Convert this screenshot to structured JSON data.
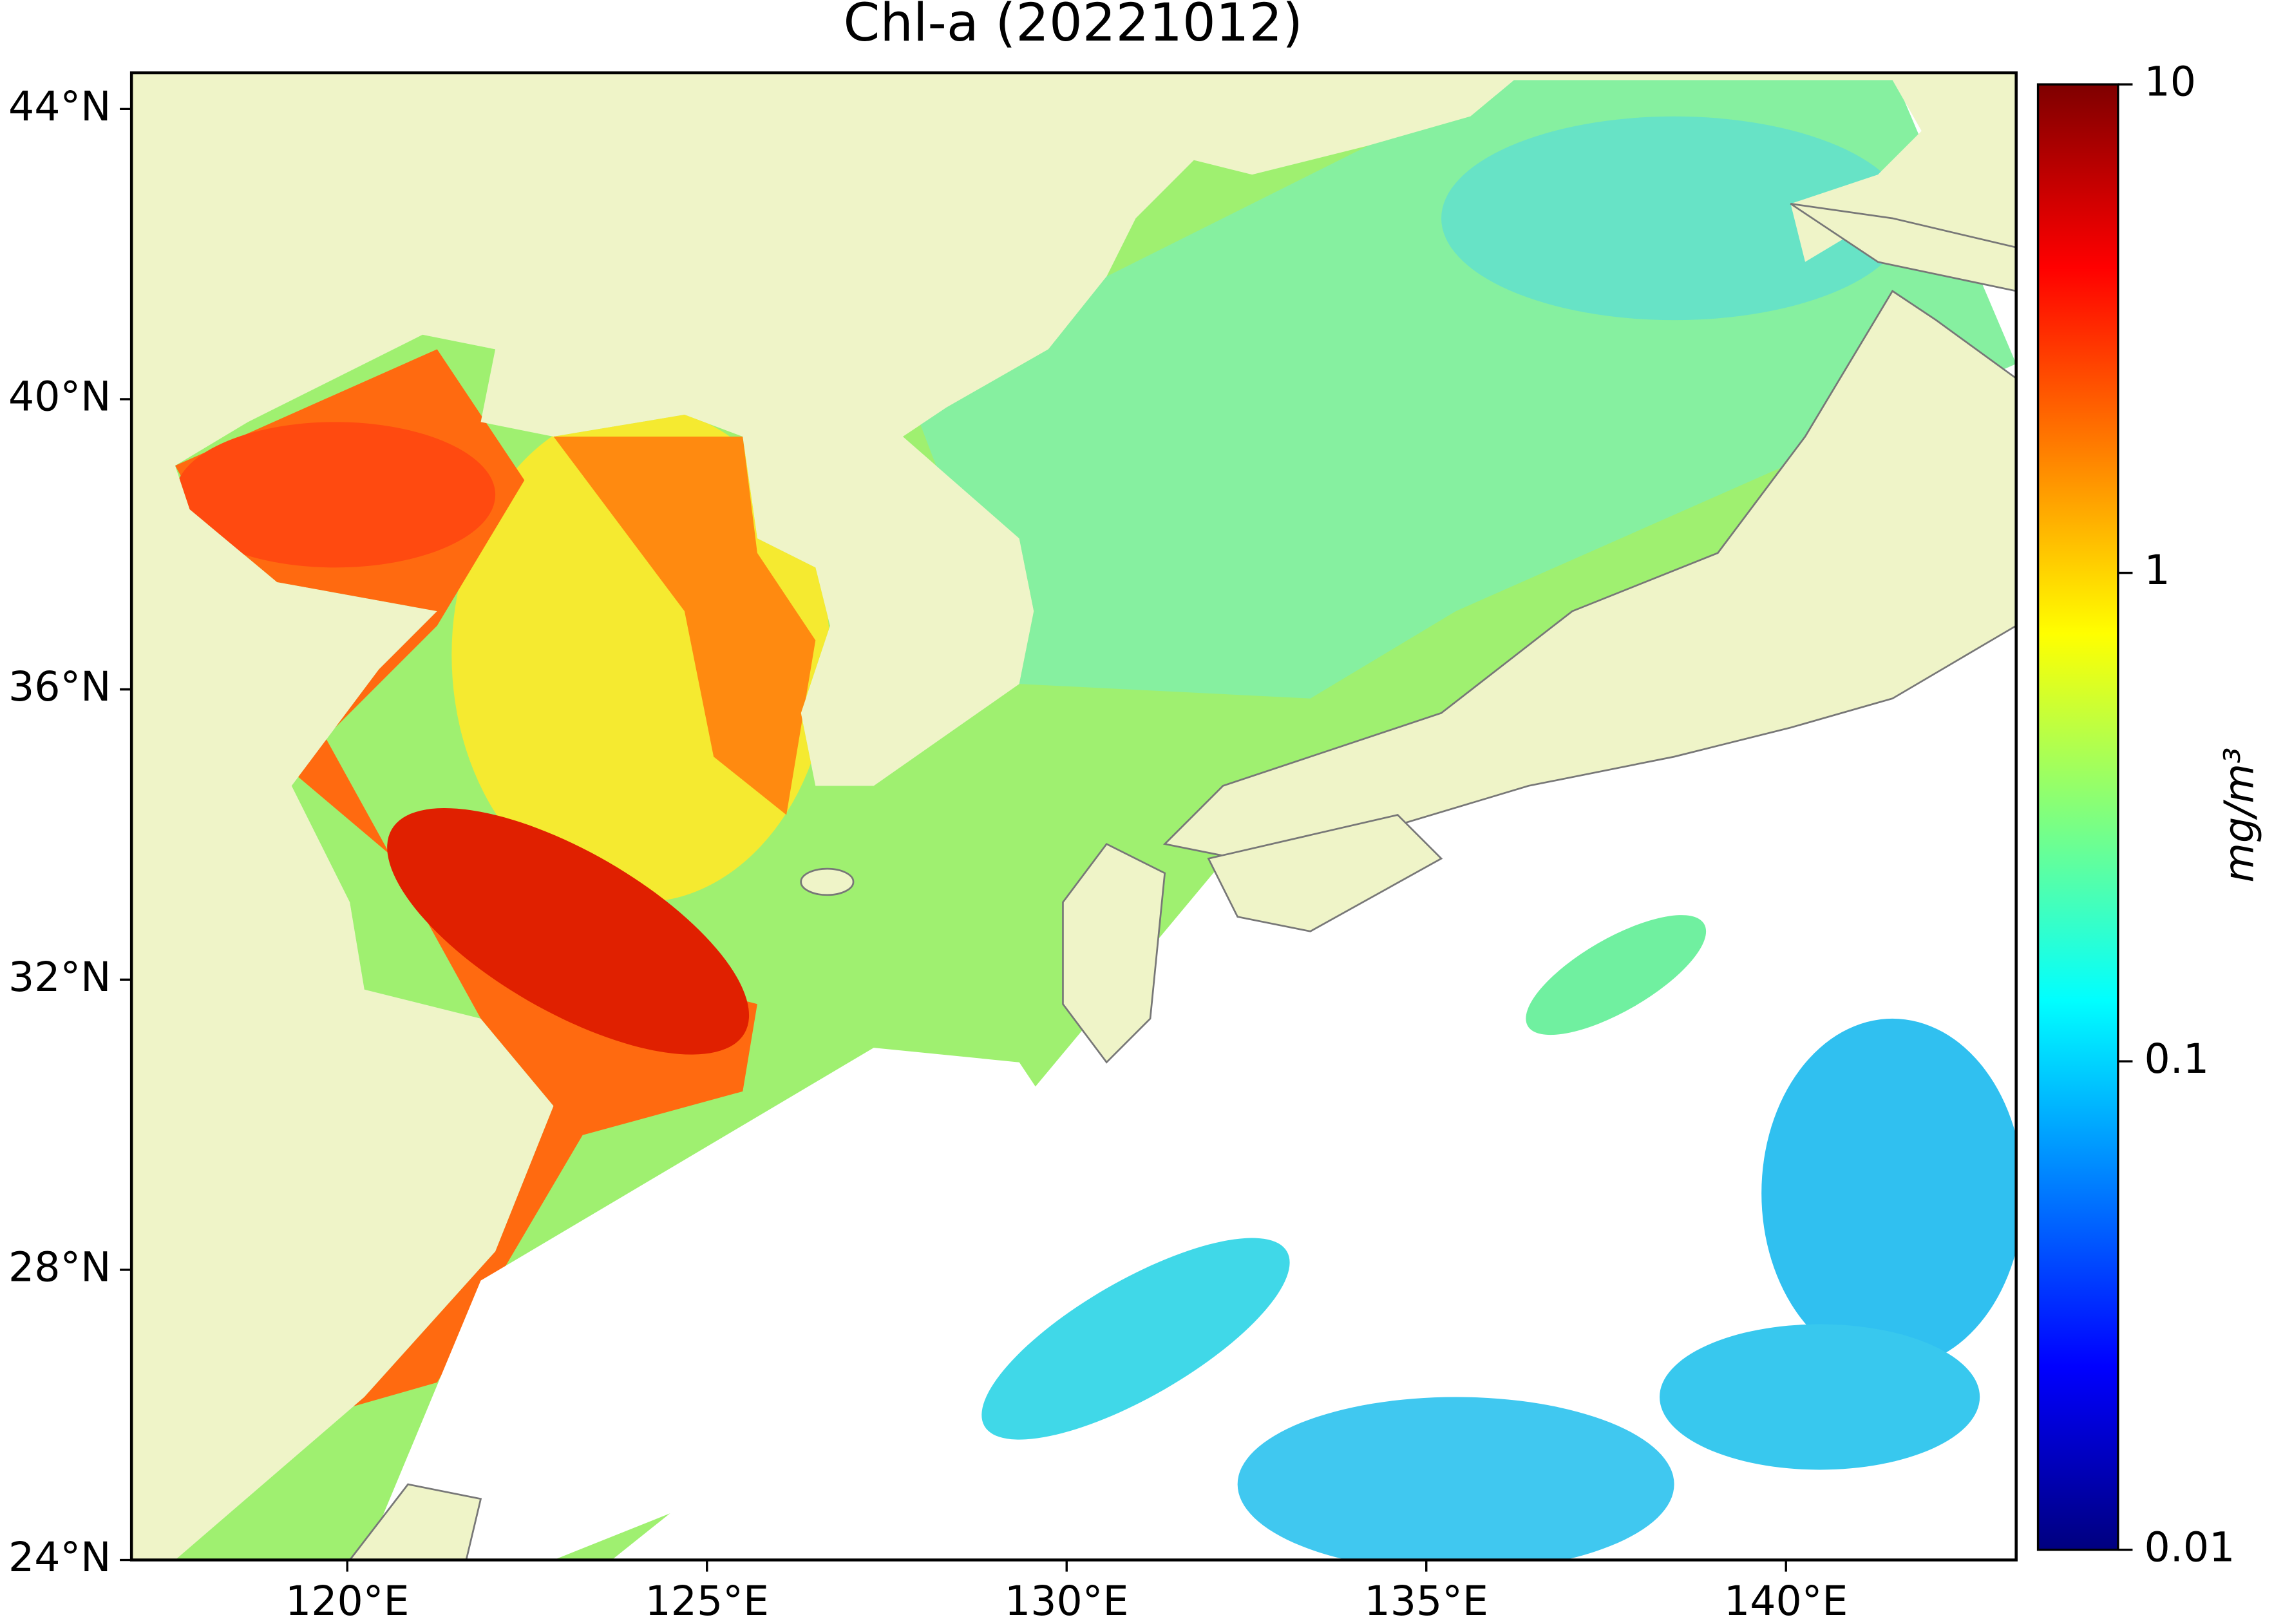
{
  "chart_data": {
    "type": "map",
    "title": "Chl-a (20221012)",
    "xlim": [
      117,
      143.2
    ],
    "ylim": [
      24,
      44.5
    ],
    "xticks": [
      {
        "value": 120,
        "label": "120°E"
      },
      {
        "value": 125,
        "label": "125°E"
      },
      {
        "value": 130,
        "label": "130°E"
      },
      {
        "value": 135,
        "label": "135°E"
      },
      {
        "value": 140,
        "label": "140°E"
      }
    ],
    "yticks": [
      {
        "value": 24,
        "label": "24°N"
      },
      {
        "value": 28,
        "label": "28°N"
      },
      {
        "value": 32,
        "label": "32°N"
      },
      {
        "value": 36,
        "label": "36°N"
      },
      {
        "value": 40,
        "label": "40°N"
      },
      {
        "value": 44,
        "label": "44°N"
      }
    ],
    "colorbar": {
      "label": "mg/m³",
      "colormap": "jet",
      "scale": "log",
      "lim": [
        0.01,
        10
      ],
      "ticks": [
        0.01,
        0.1,
        1,
        10
      ]
    }
  }
}
